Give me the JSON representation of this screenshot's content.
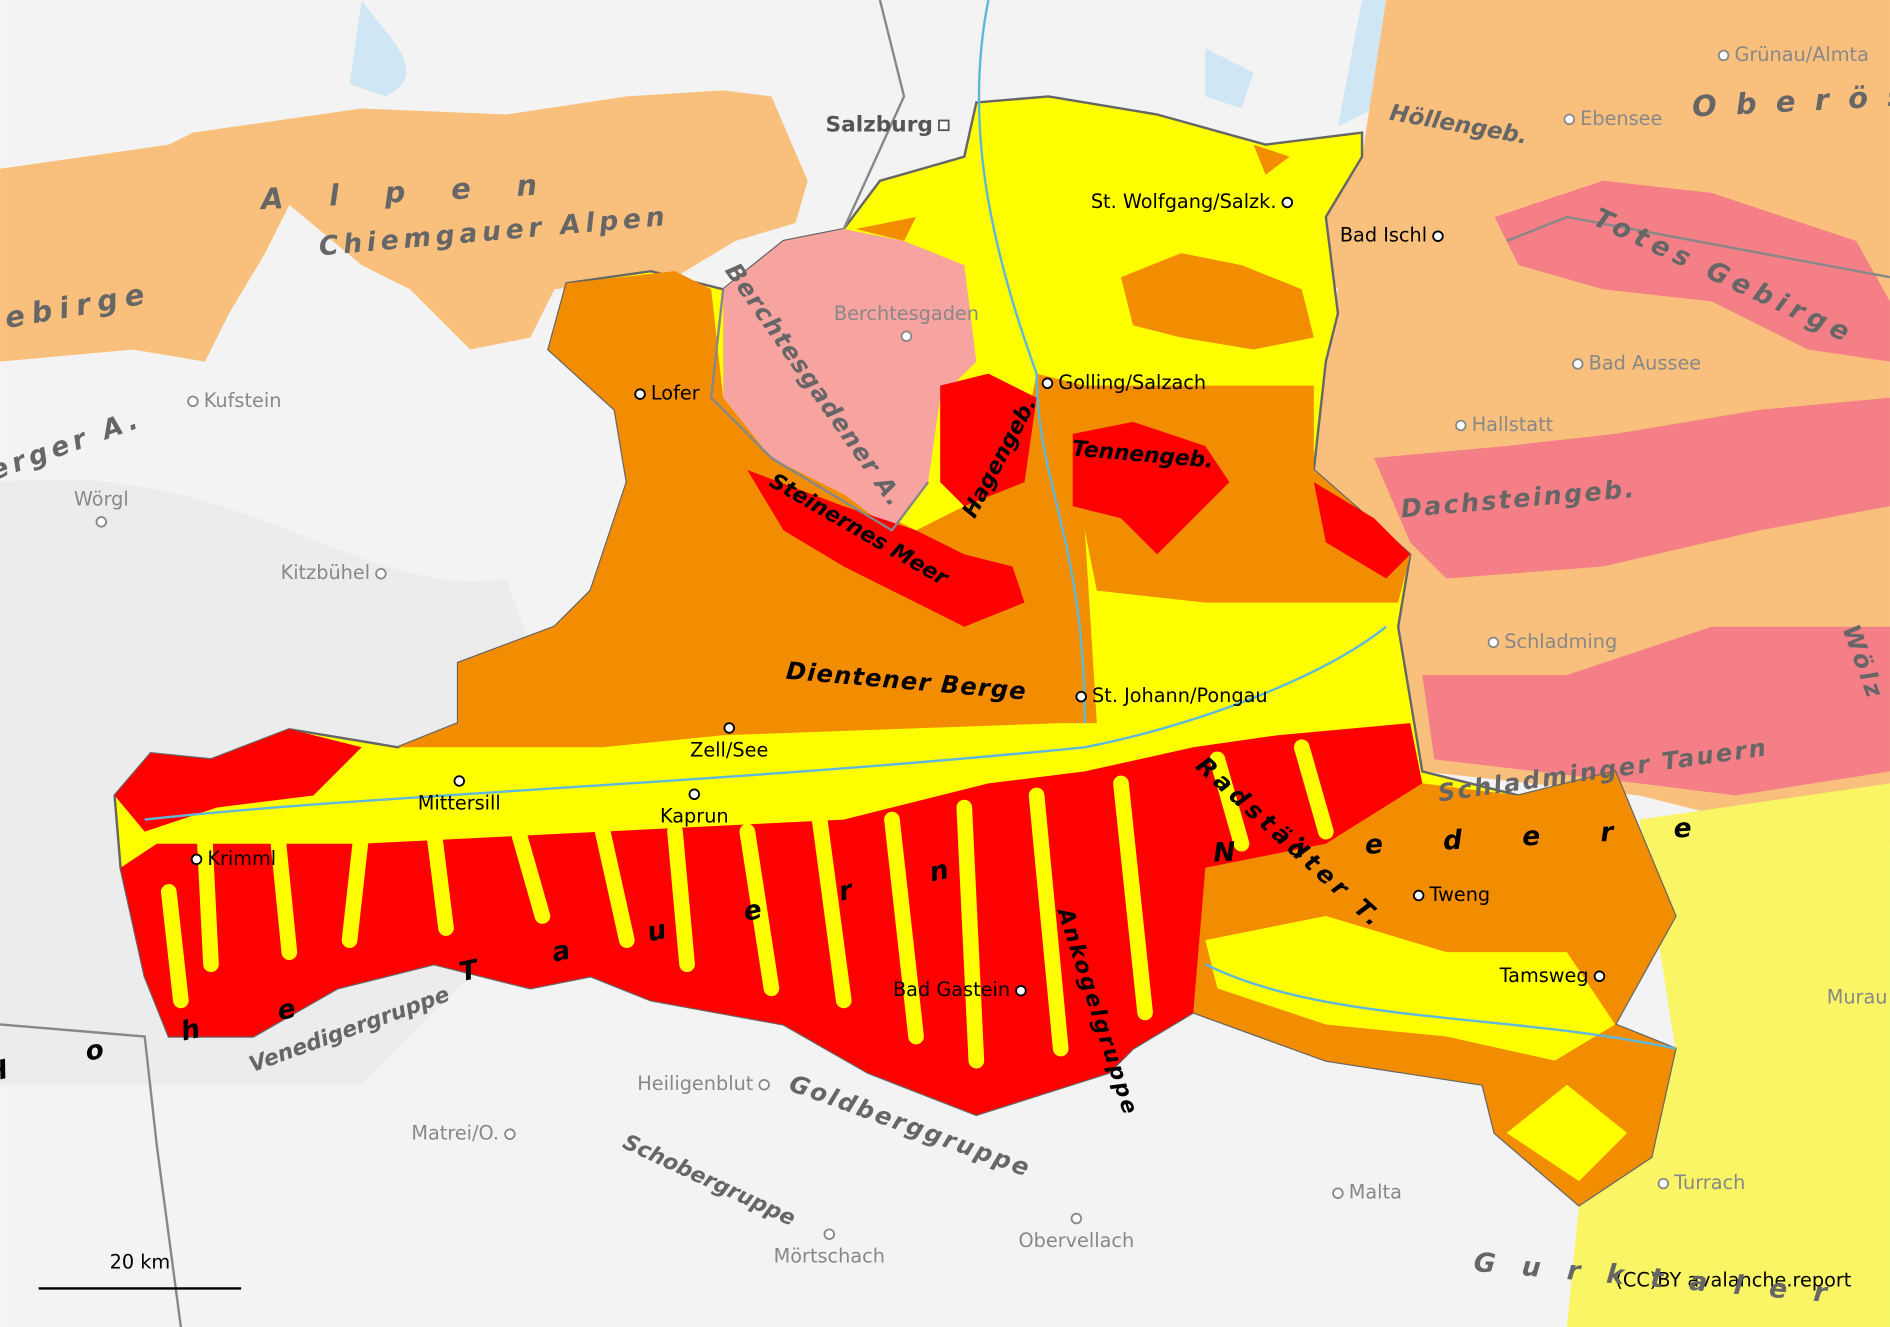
{
  "places": [
    "Salzburg",
    "Grünau/Almta",
    "Ebensee",
    "St. Wolfgang/Salzk.",
    "Bad Ischl",
    "Berchtesgaden",
    "Kufstein",
    "Lofer",
    "Golling/Salzach",
    "Bad Aussee",
    "Hallstatt",
    "Wörgl",
    "Kitzbühel",
    "Schladming",
    "St. Johann/Pongau",
    "Zell/See",
    "Mittersill",
    "Kaprun",
    "Krimml",
    "Tweng",
    "Tamsweg",
    "Bad Gastein",
    "Murau",
    "Heiligenblut",
    "Matrei/O.",
    "Malta",
    "Turrach",
    "Mörtschach",
    "Obervellach"
  ],
  "regions": [
    "Alpen",
    "Chiemgauer Alpen",
    "ebirge",
    "erger A.",
    "Berchtesgadener A.",
    "Höllengeb.",
    "Oberös",
    "Totes Gebirge",
    "Dachsteingeb.",
    "Hagengeb.",
    "Tennengeb.",
    "Steinernes Meer",
    "Dientener Berge",
    "Radstädter T.",
    "Schladminger Tauern",
    "Niedere",
    "Hohe Tauern",
    "Ankogelgruppe",
    "Venedigergruppe",
    "Goldberggruppe",
    "Schobergruppe",
    "Gurktaler",
    "Wölz"
  ],
  "scale_bar": "20 km",
  "credit": "(CC)BY avalanche.report"
}
